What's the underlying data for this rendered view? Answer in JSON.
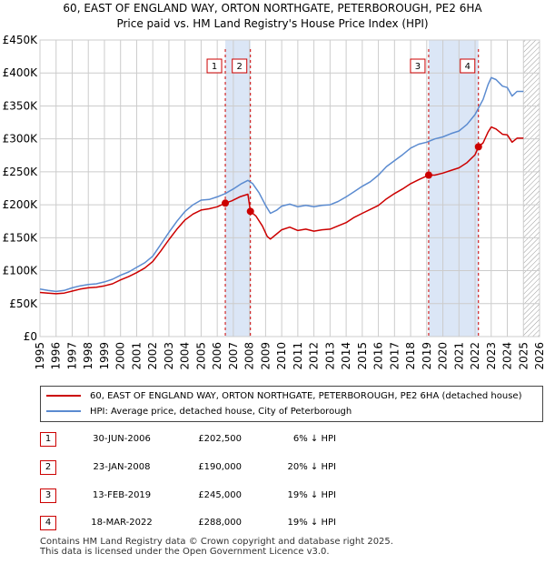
{
  "header": {
    "title": "60, EAST OF ENGLAND WAY, ORTON NORTHGATE, PETERBOROUGH, PE2 6HA",
    "subtitle": "Price paid vs. HM Land Registry's House Price Index (HPI)"
  },
  "colors": {
    "red": "#cc0000",
    "blue": "#5b8bd0",
    "band": "#dbe6f6",
    "grid": "#cccccc"
  },
  "chart_data": {
    "type": "line",
    "title": "Price paid vs. HM Land Registry's House Price Index (HPI)",
    "xlim": [
      1995,
      2026
    ],
    "ylim": [
      0,
      450000
    ],
    "y_ticks": [
      0,
      50000,
      100000,
      150000,
      200000,
      250000,
      300000,
      350000,
      400000,
      450000
    ],
    "y_tick_labels": [
      "£0",
      "£50K",
      "£100K",
      "£150K",
      "£200K",
      "£250K",
      "£300K",
      "£350K",
      "£400K",
      "£450K"
    ],
    "x_ticks": [
      1995,
      1996,
      1997,
      1998,
      1999,
      2000,
      2001,
      2002,
      2003,
      2004,
      2005,
      2006,
      2007,
      2008,
      2009,
      2010,
      2011,
      2012,
      2013,
      2014,
      2015,
      2016,
      2017,
      2018,
      2019,
      2020,
      2021,
      2022,
      2023,
      2024,
      2025,
      2026
    ],
    "shaded_ranges": [
      [
        2006.5,
        2008.06
      ],
      [
        2019.12,
        2022.21
      ]
    ],
    "hatched_from": 2025.0,
    "series": [
      {
        "name": "HPI: Average price, detached house, City of Peterborough",
        "color": "#5b8bd0",
        "points": [
          [
            1995.0,
            72000
          ],
          [
            1995.5,
            70000
          ],
          [
            1996.0,
            68500
          ],
          [
            1996.5,
            70000
          ],
          [
            1997.0,
            74000
          ],
          [
            1997.5,
            77000
          ],
          [
            1998.0,
            79000
          ],
          [
            1998.5,
            80000
          ],
          [
            1999.0,
            83000
          ],
          [
            1999.5,
            87000
          ],
          [
            2000.0,
            93000
          ],
          [
            2000.5,
            98000
          ],
          [
            2001.0,
            105000
          ],
          [
            2001.5,
            112000
          ],
          [
            2002.0,
            122000
          ],
          [
            2002.5,
            140000
          ],
          [
            2003.0,
            158000
          ],
          [
            2003.5,
            175000
          ],
          [
            2004.0,
            190000
          ],
          [
            2004.5,
            200000
          ],
          [
            2005.0,
            207000
          ],
          [
            2005.5,
            208000
          ],
          [
            2006.0,
            212000
          ],
          [
            2006.5,
            217000
          ],
          [
            2007.0,
            224000
          ],
          [
            2007.5,
            232000
          ],
          [
            2007.9,
            237000
          ],
          [
            2008.2,
            232000
          ],
          [
            2008.6,
            218000
          ],
          [
            2009.0,
            199000
          ],
          [
            2009.3,
            187000
          ],
          [
            2009.7,
            192000
          ],
          [
            2010.0,
            198000
          ],
          [
            2010.5,
            201000
          ],
          [
            2011.0,
            197000
          ],
          [
            2011.5,
            199000
          ],
          [
            2012.0,
            197000
          ],
          [
            2012.5,
            199000
          ],
          [
            2013.0,
            200000
          ],
          [
            2013.5,
            205000
          ],
          [
            2014.0,
            212000
          ],
          [
            2014.5,
            220000
          ],
          [
            2015.0,
            228000
          ],
          [
            2015.5,
            235000
          ],
          [
            2016.0,
            245000
          ],
          [
            2016.5,
            258000
          ],
          [
            2017.0,
            267000
          ],
          [
            2017.5,
            276000
          ],
          [
            2018.0,
            286000
          ],
          [
            2018.5,
            292000
          ],
          [
            2019.0,
            295000
          ],
          [
            2019.5,
            300000
          ],
          [
            2020.0,
            303000
          ],
          [
            2020.5,
            308000
          ],
          [
            2021.0,
            312000
          ],
          [
            2021.5,
            322000
          ],
          [
            2022.0,
            337000
          ],
          [
            2022.5,
            360000
          ],
          [
            2022.8,
            382000
          ],
          [
            2023.0,
            393000
          ],
          [
            2023.3,
            390000
          ],
          [
            2023.7,
            380000
          ],
          [
            2024.0,
            378000
          ],
          [
            2024.3,
            365000
          ],
          [
            2024.6,
            372000
          ],
          [
            2025.0,
            372000
          ]
        ]
      },
      {
        "name": "60, EAST OF ENGLAND WAY, ORTON NORTHGATE, PETERBOROUGH, PE2 6HA (detached house)",
        "color": "#cc0000",
        "points": [
          [
            1995.0,
            67000
          ],
          [
            1995.5,
            66000
          ],
          [
            1996.0,
            65000
          ],
          [
            1996.5,
            66000
          ],
          [
            1997.0,
            69000
          ],
          [
            1997.5,
            72000
          ],
          [
            1998.0,
            74000
          ],
          [
            1998.5,
            75000
          ],
          [
            1999.0,
            77000
          ],
          [
            1999.5,
            80000
          ],
          [
            2000.0,
            86000
          ],
          [
            2000.5,
            91000
          ],
          [
            2001.0,
            97000
          ],
          [
            2001.5,
            104000
          ],
          [
            2002.0,
            114000
          ],
          [
            2002.5,
            130000
          ],
          [
            2003.0,
            147000
          ],
          [
            2003.5,
            163000
          ],
          [
            2004.0,
            177000
          ],
          [
            2004.5,
            186000
          ],
          [
            2005.0,
            192000
          ],
          [
            2005.5,
            194000
          ],
          [
            2006.0,
            197000
          ],
          [
            2006.5,
            202500
          ],
          [
            2006.9,
            206000
          ],
          [
            2007.4,
            212000
          ],
          [
            2007.9,
            216000
          ],
          [
            2008.06,
            190000
          ],
          [
            2008.4,
            183000
          ],
          [
            2008.8,
            168000
          ],
          [
            2009.1,
            152000
          ],
          [
            2009.3,
            148000
          ],
          [
            2009.7,
            156000
          ],
          [
            2010.0,
            162000
          ],
          [
            2010.5,
            166000
          ],
          [
            2011.0,
            161000
          ],
          [
            2011.5,
            163000
          ],
          [
            2012.0,
            160000
          ],
          [
            2012.5,
            162000
          ],
          [
            2013.0,
            163000
          ],
          [
            2013.5,
            168000
          ],
          [
            2014.0,
            173000
          ],
          [
            2014.5,
            181000
          ],
          [
            2015.0,
            187000
          ],
          [
            2015.5,
            193000
          ],
          [
            2016.0,
            199000
          ],
          [
            2016.5,
            209000
          ],
          [
            2017.0,
            217000
          ],
          [
            2017.5,
            224000
          ],
          [
            2018.0,
            232000
          ],
          [
            2018.5,
            238000
          ],
          [
            2019.12,
            245000
          ],
          [
            2019.5,
            245000
          ],
          [
            2020.0,
            248000
          ],
          [
            2020.5,
            252000
          ],
          [
            2021.0,
            256000
          ],
          [
            2021.5,
            264000
          ],
          [
            2022.0,
            276000
          ],
          [
            2022.21,
            288000
          ],
          [
            2022.5,
            294000
          ],
          [
            2022.8,
            310000
          ],
          [
            2023.0,
            318000
          ],
          [
            2023.3,
            315000
          ],
          [
            2023.7,
            307000
          ],
          [
            2024.0,
            306000
          ],
          [
            2024.3,
            295000
          ],
          [
            2024.6,
            301000
          ],
          [
            2025.0,
            301000
          ]
        ]
      }
    ],
    "markers": [
      {
        "label": "1",
        "x": 2006.5,
        "y": 202500
      },
      {
        "label": "2",
        "x": 2008.06,
        "y": 190000
      },
      {
        "label": "3",
        "x": 2019.12,
        "y": 245000
      },
      {
        "label": "4",
        "x": 2022.21,
        "y": 288000
      }
    ]
  },
  "legend": {
    "property": "60, EAST OF ENGLAND WAY, ORTON NORTHGATE, PETERBOROUGH, PE2 6HA (detached house)",
    "hpi": "HPI: Average price, detached house, City of Peterborough"
  },
  "sales": [
    {
      "num": "1",
      "date": "30-JUN-2006",
      "price": "£202,500",
      "hpi": "6% ↓ HPI"
    },
    {
      "num": "2",
      "date": "23-JAN-2008",
      "price": "£190,000",
      "hpi": "20% ↓ HPI"
    },
    {
      "num": "3",
      "date": "13-FEB-2019",
      "price": "£245,000",
      "hpi": "19% ↓ HPI"
    },
    {
      "num": "4",
      "date": "18-MAR-2022",
      "price": "£288,000",
      "hpi": "19% ↓ HPI"
    }
  ],
  "footer": {
    "line1": "Contains HM Land Registry data © Crown copyright and database right 2025.",
    "line2": "This data is licensed under the Open Government Licence v3.0."
  }
}
